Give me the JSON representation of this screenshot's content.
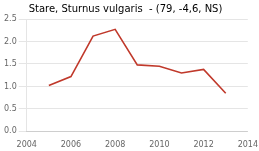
{
  "chart_data": {
    "type": "line",
    "title": "Stare, Sturnus vulgaris  - (79, -4,6, NS)",
    "x": [
      2005,
      2006,
      2007,
      2008,
      2009,
      2010,
      2011,
      2012,
      2013
    ],
    "values": [
      1.02,
      1.22,
      2.12,
      2.27,
      1.48,
      1.45,
      1.3,
      1.38,
      0.85
    ],
    "color": "#c0392b",
    "xlim": [
      2004,
      2014
    ],
    "xticks": [
      2004,
      2006,
      2008,
      2010,
      2012,
      2014
    ],
    "ylim": [
      0,
      2.5
    ],
    "yticks": [
      {
        "value": 0,
        "label": "0.0"
      },
      0.5,
      {
        "value": 1,
        "label": "1.0"
      },
      1.5,
      {
        "value": 2,
        "label": "2.0"
      },
      2.5
    ],
    "grid": "y"
  }
}
